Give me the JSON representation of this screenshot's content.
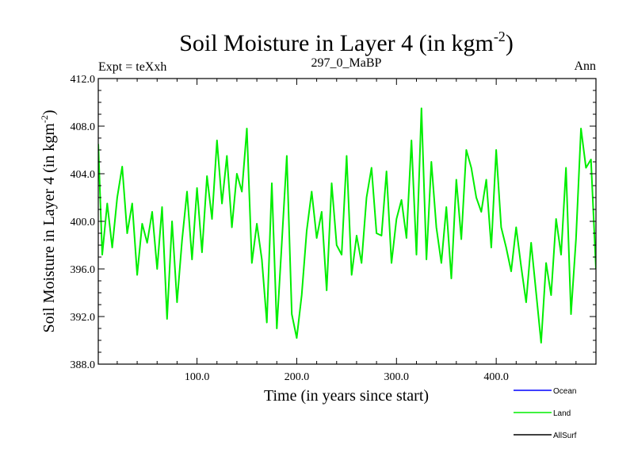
{
  "chart_data": {
    "type": "line",
    "title": "Soil Moisture in Layer 4 (in kgm",
    "title_sup": "-2",
    "title_end": ")",
    "subtitle_left": "Expt = teXxh",
    "subtitle_center": "297_0_MaBP",
    "subtitle_right": "Ann",
    "xlabel": "Time (in years since start)",
    "ylabel": "Soil Moisture in Layer 4 (in kgm",
    "ylabel_sup": "-2",
    "ylabel_end": ")",
    "xlim": [
      1,
      500
    ],
    "ylim": [
      388,
      412
    ],
    "xticks": [
      100,
      200,
      300,
      400
    ],
    "xtick_labels": [
      "100.0",
      "200.0",
      "300.0",
      "400.0"
    ],
    "yticks": [
      388,
      392,
      396,
      400,
      404,
      408,
      412
    ],
    "ytick_labels": [
      "388.0",
      "392.0",
      "396.0",
      "400.0",
      "404.0",
      "408.0",
      "412.0"
    ],
    "legend": [
      {
        "name": "Ocean",
        "color": "#0000ff"
      },
      {
        "name": "Land",
        "color": "#00ee00"
      },
      {
        "name": "AllSurf",
        "color": "#000000"
      }
    ],
    "series": [
      {
        "name": "Land",
        "color": "#00ee00",
        "x": [
          1,
          5,
          10,
          15,
          20,
          25,
          30,
          35,
          40,
          45,
          50,
          55,
          60,
          65,
          70,
          75,
          80,
          85,
          90,
          95,
          100,
          105,
          110,
          115,
          120,
          125,
          130,
          135,
          140,
          145,
          150,
          155,
          160,
          165,
          170,
          175,
          180,
          185,
          190,
          195,
          200,
          205,
          210,
          215,
          220,
          225,
          230,
          235,
          240,
          245,
          250,
          255,
          260,
          265,
          270,
          275,
          280,
          285,
          290,
          295,
          300,
          305,
          310,
          315,
          320,
          325,
          330,
          335,
          340,
          345,
          350,
          355,
          360,
          365,
          370,
          375,
          380,
          385,
          390,
          395,
          400,
          405,
          410,
          415,
          420,
          425,
          430,
          435,
          440,
          445,
          450,
          455,
          460,
          465,
          470,
          475,
          480,
          485,
          490,
          495,
          500
        ],
        "values": [
          406.5,
          397.2,
          401.5,
          397.8,
          402.0,
          404.6,
          399.0,
          401.5,
          395.5,
          399.8,
          398.2,
          400.8,
          396.0,
          401.2,
          391.8,
          400.0,
          393.2,
          398.4,
          402.5,
          396.8,
          402.8,
          397.4,
          403.8,
          400.2,
          406.8,
          401.5,
          405.5,
          399.5,
          404.0,
          402.5,
          407.8,
          396.5,
          399.8,
          396.8,
          391.5,
          403.2,
          391.0,
          398.2,
          405.5,
          392.2,
          390.2,
          393.8,
          399.2,
          402.5,
          398.6,
          400.8,
          394.2,
          403.2,
          398.0,
          397.2,
          405.5,
          395.5,
          398.8,
          396.5,
          402.0,
          404.5,
          399.0,
          398.8,
          404.2,
          396.5,
          400.2,
          401.8,
          398.6,
          406.8,
          397.2,
          409.5,
          396.8,
          405.0,
          399.5,
          396.5,
          401.2,
          395.2,
          403.5,
          398.5,
          406.0,
          404.5,
          402.0,
          400.8,
          403.5,
          397.8,
          406.0,
          399.5,
          397.8,
          395.8,
          399.5,
          396.2,
          393.2,
          398.2,
          394.0,
          389.8,
          396.5,
          393.8,
          400.2,
          397.2,
          404.5,
          392.2,
          398.5,
          407.8,
          404.5,
          405.2,
          396.0
        ]
      }
    ]
  }
}
